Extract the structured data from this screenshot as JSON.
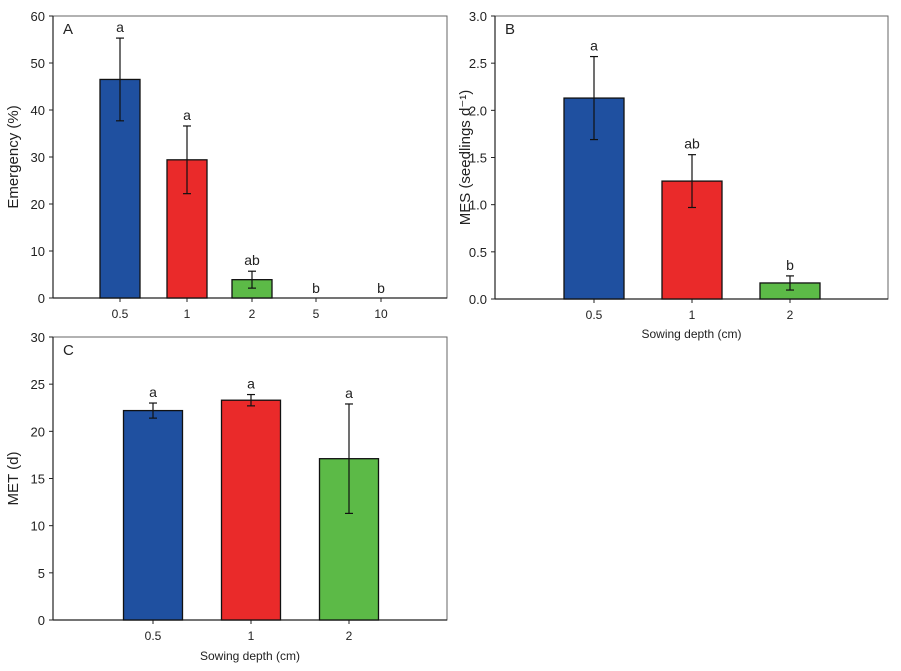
{
  "colors": {
    "0.5": "#1f50a0",
    "1": "#ea2a2a",
    "2": "#5cba47"
  },
  "chart_data": [
    {
      "type": "bar",
      "panel_label": "A",
      "categories": [
        "0.5",
        "1",
        "2",
        "5",
        "10"
      ],
      "values": [
        46.5,
        29.4,
        3.9,
        0,
        0
      ],
      "errors": [
        8.8,
        7.2,
        1.8,
        0,
        0
      ],
      "letters": [
        "a",
        "a",
        "ab",
        "b",
        "b"
      ],
      "xlabel": "",
      "ylabel": "Emergency  (%)",
      "ylim": [
        0,
        60
      ],
      "yticks": [
        "0",
        "10",
        "20",
        "30",
        "40",
        "50",
        "60"
      ],
      "grid": false
    },
    {
      "type": "bar",
      "panel_label": "B",
      "categories": [
        "0.5",
        "1",
        "2"
      ],
      "values": [
        2.13,
        1.25,
        0.17
      ],
      "errors": [
        0.44,
        0.28,
        0.075
      ],
      "letters": [
        "a",
        "ab",
        "b"
      ],
      "xlabel": "Sowing depth (cm)",
      "ylabel": "MES (seedlings d⁻¹)",
      "ylim": [
        0,
        3.0
      ],
      "yticks": [
        "0.0",
        "0.5",
        "1.0",
        "1.5",
        "2.0",
        "2.5",
        "3.0"
      ],
      "grid": false
    },
    {
      "type": "bar",
      "panel_label": "C",
      "categories": [
        "0.5",
        "1",
        "2"
      ],
      "values": [
        22.2,
        23.3,
        17.1
      ],
      "errors": [
        0.8,
        0.6,
        5.8
      ],
      "letters": [
        "a",
        "a",
        "a"
      ],
      "xlabel": "Sowing depth (cm)",
      "ylabel": "MET (d)",
      "ylim": [
        0,
        30
      ],
      "yticks": [
        "0",
        "5",
        "10",
        "15",
        "20",
        "25",
        "30"
      ],
      "grid": false
    }
  ]
}
